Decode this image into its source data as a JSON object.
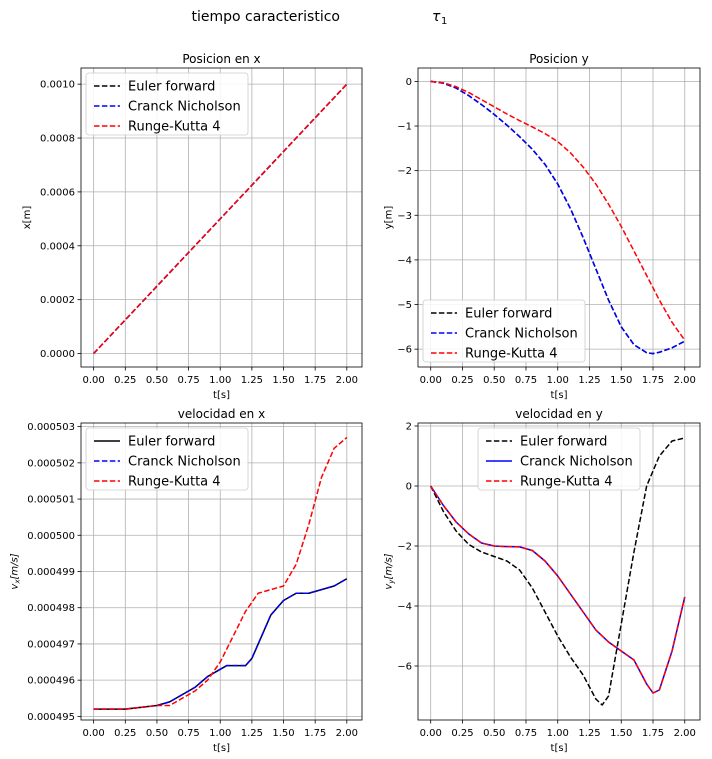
{
  "figure": {
    "suptitle": "tiempo caracteristico",
    "suptitle_symbol": "τ",
    "suptitle_subscript": "1"
  },
  "chart_data": [
    {
      "type": "line",
      "title": "Posicion en x",
      "xlabel": "t[s]",
      "ylabel": "x[m]",
      "xlim": [
        -0.1,
        2.12
      ],
      "ylim": [
        -5e-05,
        0.00106
      ],
      "xticks": [
        0,
        0.25,
        0.5,
        0.75,
        1.0,
        1.25,
        1.5,
        1.75,
        2.0
      ],
      "xtick_labels": [
        "0.00",
        "0.25",
        "0.50",
        "0.75",
        "1.00",
        "1.25",
        "1.50",
        "1.75",
        "2.00"
      ],
      "yticks": [
        0,
        0.0002,
        0.0004,
        0.0006,
        0.0008,
        0.001
      ],
      "ytick_labels": [
        "0.0000",
        "0.0002",
        "0.0004",
        "0.0006",
        "0.0008",
        "0.0010"
      ],
      "grid": true,
      "legend": "upper left",
      "series": [
        {
          "name": "Euler forward",
          "color": "#000000",
          "dash": "dashed",
          "x": [
            0,
            2
          ],
          "y": [
            0,
            0.001
          ]
        },
        {
          "name": "Cranck Nicholson",
          "color": "#0000ff",
          "dash": "dashed",
          "x": [
            0,
            2
          ],
          "y": [
            0,
            0.001
          ]
        },
        {
          "name": "Runge-Kutta 4",
          "color": "#ff0000",
          "dash": "dashed",
          "x": [
            0,
            2
          ],
          "y": [
            0,
            0.001
          ]
        }
      ]
    },
    {
      "type": "line",
      "title": "Posicion y",
      "xlabel": "t[s]",
      "ylabel": "y[m]",
      "xlim": [
        -0.1,
        2.12
      ],
      "ylim": [
        -6.4,
        0.3
      ],
      "xticks": [
        0,
        0.25,
        0.5,
        0.75,
        1.0,
        1.25,
        1.5,
        1.75,
        2.0
      ],
      "xtick_labels": [
        "0.00",
        "0.25",
        "0.50",
        "0.75",
        "1.00",
        "1.25",
        "1.50",
        "1.75",
        "2.00"
      ],
      "yticks": [
        0,
        -1,
        -2,
        -3,
        -4,
        -5,
        -6
      ],
      "ytick_labels": [
        "0",
        "−1",
        "−2",
        "−3",
        "−4",
        "−5",
        "−6"
      ],
      "grid": true,
      "legend": "lower left",
      "series": [
        {
          "name": "Euler forward",
          "color": "#000000",
          "dash": "dashed",
          "x": [
            0,
            0.1,
            0.2,
            0.3,
            0.4,
            0.5,
            0.6,
            0.7,
            0.8,
            0.9,
            1.0,
            1.1,
            1.2,
            1.3,
            1.4,
            1.5,
            1.6,
            1.7,
            1.75,
            1.8,
            1.9,
            2.0
          ],
          "y": [
            0,
            -0.04,
            -0.15,
            -0.32,
            -0.52,
            -0.74,
            -0.98,
            -1.24,
            -1.52,
            -1.86,
            -2.3,
            -2.85,
            -3.5,
            -4.2,
            -4.9,
            -5.5,
            -5.9,
            -6.08,
            -6.1,
            -6.07,
            -5.97,
            -5.82
          ]
        },
        {
          "name": "Cranck Nicholson",
          "color": "#0000ff",
          "dash": "dashed",
          "x": [
            0,
            0.1,
            0.2,
            0.3,
            0.4,
            0.5,
            0.6,
            0.7,
            0.8,
            0.9,
            1.0,
            1.1,
            1.2,
            1.3,
            1.4,
            1.5,
            1.6,
            1.7,
            1.75,
            1.8,
            1.9,
            2.0
          ],
          "y": [
            0,
            -0.04,
            -0.15,
            -0.32,
            -0.52,
            -0.74,
            -0.98,
            -1.24,
            -1.52,
            -1.86,
            -2.3,
            -2.85,
            -3.5,
            -4.2,
            -4.9,
            -5.5,
            -5.9,
            -6.08,
            -6.1,
            -6.07,
            -5.97,
            -5.82
          ]
        },
        {
          "name": "Runge-Kutta 4",
          "color": "#ff0000",
          "dash": "dashed",
          "x": [
            0,
            0.1,
            0.2,
            0.3,
            0.4,
            0.5,
            0.6,
            0.7,
            0.8,
            0.9,
            1.0,
            1.1,
            1.2,
            1.3,
            1.4,
            1.5,
            1.6,
            1.7,
            1.8,
            1.9,
            2.0
          ],
          "y": [
            0,
            -0.03,
            -0.12,
            -0.25,
            -0.41,
            -0.57,
            -0.73,
            -0.88,
            -1.02,
            -1.17,
            -1.35,
            -1.6,
            -1.92,
            -2.3,
            -2.75,
            -3.25,
            -3.8,
            -4.35,
            -4.9,
            -5.4,
            -5.8
          ]
        }
      ]
    },
    {
      "type": "line",
      "title": "velocidad en x",
      "xlabel": "t[s]",
      "ylabel": "v",
      "ylabel_subscript": "x",
      "ylabel_units": "[m/s]",
      "xlim": [
        -0.1,
        2.12
      ],
      "ylim": [
        0.0004949,
        0.0005031
      ],
      "xticks": [
        0,
        0.25,
        0.5,
        0.75,
        1.0,
        1.25,
        1.5,
        1.75,
        2.0
      ],
      "xtick_labels": [
        "0.00",
        "0.25",
        "0.50",
        "0.75",
        "1.00",
        "1.25",
        "1.50",
        "1.75",
        "2.00"
      ],
      "yticks": [
        0.000495,
        0.000496,
        0.000497,
        0.000498,
        0.000499,
        0.0005,
        0.000501,
        0.000502,
        0.000503
      ],
      "ytick_labels": [
        "0.000495",
        "0.000496",
        "0.000497",
        "0.000498",
        "0.000499",
        "0.000500",
        "0.000501",
        "0.000502",
        "0.000503"
      ],
      "grid": true,
      "legend": "upper left",
      "series": [
        {
          "name": "Euler forward",
          "color": "#000000",
          "dash": "solid",
          "x": [
            0,
            0.25,
            0.5,
            0.6,
            0.7,
            0.8,
            0.9,
            1.0,
            1.05,
            1.1,
            1.2,
            1.25,
            1.3,
            1.4,
            1.5,
            1.55,
            1.6,
            1.7,
            1.8,
            1.9,
            2.0
          ],
          "y": [
            0.0004952,
            0.0004952,
            0.0004953,
            0.0004954,
            0.0004956,
            0.0004958,
            0.0004961,
            0.0004963,
            0.0004964,
            0.0004964,
            0.0004964,
            0.0004966,
            0.000497,
            0.0004978,
            0.0004982,
            0.0004983,
            0.0004984,
            0.0004984,
            0.0004985,
            0.0004986,
            0.0004988
          ]
        },
        {
          "name": "Cranck Nicholson",
          "color": "#0000ff",
          "dash": "dashed",
          "x": [
            0,
            0.25,
            0.5,
            0.6,
            0.7,
            0.8,
            0.9,
            1.0,
            1.05,
            1.1,
            1.2,
            1.25,
            1.3,
            1.4,
            1.5,
            1.55,
            1.6,
            1.7,
            1.8,
            1.9,
            2.0
          ],
          "y": [
            0.0004952,
            0.0004952,
            0.0004953,
            0.0004954,
            0.0004956,
            0.0004958,
            0.0004961,
            0.0004963,
            0.0004964,
            0.0004964,
            0.0004964,
            0.0004966,
            0.000497,
            0.0004978,
            0.0004982,
            0.0004983,
            0.0004984,
            0.0004984,
            0.0004985,
            0.0004986,
            0.0004988
          ]
        },
        {
          "name": "Runge-Kutta 4",
          "color": "#ff0000",
          "dash": "dashed",
          "x": [
            0,
            0.25,
            0.5,
            0.6,
            0.7,
            0.8,
            0.9,
            1.0,
            1.1,
            1.2,
            1.3,
            1.4,
            1.5,
            1.6,
            1.7,
            1.8,
            1.9,
            2.0
          ],
          "y": [
            0.0004952,
            0.0004952,
            0.0004953,
            0.0004953,
            0.0004955,
            0.0004957,
            0.000496,
            0.0004965,
            0.0004972,
            0.0004979,
            0.0004984,
            0.0004985,
            0.0004986,
            0.0004992,
            0.0005003,
            0.0005016,
            0.0005024,
            0.0005027
          ]
        }
      ]
    },
    {
      "type": "line",
      "title": "velocidad en y",
      "xlabel": "t[s]",
      "ylabel": "v",
      "ylabel_subscript": "y",
      "ylabel_units": "[m/s]",
      "xlim": [
        -0.1,
        2.12
      ],
      "ylim": [
        -7.8,
        2.1
      ],
      "xticks": [
        0,
        0.25,
        0.5,
        0.75,
        1.0,
        1.25,
        1.5,
        1.75,
        2.0
      ],
      "xtick_labels": [
        "0.00",
        "0.25",
        "0.50",
        "0.75",
        "1.00",
        "1.25",
        "1.50",
        "1.75",
        "2.00"
      ],
      "yticks": [
        2,
        0,
        -2,
        -4,
        -6
      ],
      "ytick_labels": [
        "2",
        "0",
        "−2",
        "−4",
        "−6"
      ],
      "grid": true,
      "legend": "upper center",
      "series": [
        {
          "name": "Euler forward",
          "color": "#000000",
          "dash": "dashed",
          "x": [
            0,
            0.1,
            0.2,
            0.3,
            0.4,
            0.5,
            0.6,
            0.7,
            0.8,
            0.9,
            1.0,
            1.1,
            1.2,
            1.3,
            1.35,
            1.4,
            1.5,
            1.6,
            1.7,
            1.8,
            1.9,
            2.0
          ],
          "y": [
            0,
            -0.85,
            -1.5,
            -1.95,
            -2.2,
            -2.35,
            -2.5,
            -2.8,
            -3.4,
            -4.2,
            -5.0,
            -5.7,
            -6.3,
            -7.1,
            -7.3,
            -7.0,
            -4.6,
            -2.2,
            0.0,
            1.0,
            1.5,
            1.6
          ]
        },
        {
          "name": "Cranck Nicholson",
          "color": "#0000ff",
          "dash": "solid",
          "x": [
            0,
            0.1,
            0.2,
            0.3,
            0.4,
            0.5,
            0.6,
            0.7,
            0.8,
            0.9,
            1.0,
            1.1,
            1.2,
            1.3,
            1.4,
            1.5,
            1.6,
            1.7,
            1.75,
            1.8,
            1.9,
            2.0
          ],
          "y": [
            0,
            -0.65,
            -1.2,
            -1.6,
            -1.9,
            -2.0,
            -2.02,
            -2.03,
            -2.15,
            -2.5,
            -3.0,
            -3.6,
            -4.2,
            -4.8,
            -5.2,
            -5.5,
            -5.8,
            -6.6,
            -6.9,
            -6.8,
            -5.5,
            -3.7
          ]
        },
        {
          "name": "Runge-Kutta 4",
          "color": "#ff0000",
          "dash": "dashed",
          "x": [
            0,
            0.1,
            0.2,
            0.3,
            0.4,
            0.5,
            0.6,
            0.7,
            0.8,
            0.9,
            1.0,
            1.1,
            1.2,
            1.3,
            1.4,
            1.5,
            1.6,
            1.7,
            1.75,
            1.8,
            1.9,
            2.0
          ],
          "y": [
            0,
            -0.65,
            -1.2,
            -1.6,
            -1.9,
            -2.0,
            -2.02,
            -2.03,
            -2.15,
            -2.5,
            -3.0,
            -3.6,
            -4.2,
            -4.8,
            -5.2,
            -5.5,
            -5.8,
            -6.6,
            -6.9,
            -6.8,
            -5.5,
            -3.7
          ]
        }
      ]
    }
  ]
}
